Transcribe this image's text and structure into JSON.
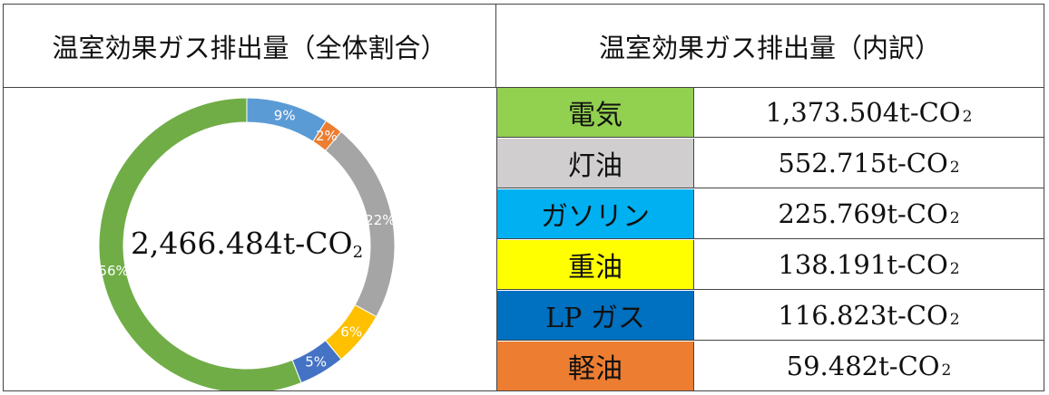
{
  "headers": {
    "left": "温室効果ガス排出量（全体割合）",
    "right": "温室効果ガス排出量（内訳）"
  },
  "center_label": {
    "main": "2,466.484t-CO",
    "sub": "2"
  },
  "rows": [
    {
      "fuel": "電気",
      "value": "1,373.504t-CO",
      "sub": "2",
      "color": "#92d050"
    },
    {
      "fuel": "灯油",
      "value": "552.715t-CO",
      "sub": "2",
      "color": "#d0cece"
    },
    {
      "fuel": "ガソリン",
      "value": "225.769t-CO",
      "sub": "2",
      "color": "#00b0f0"
    },
    {
      "fuel": "重油",
      "value": "138.191t-CO",
      "sub": "2",
      "color": "#ffff00"
    },
    {
      "fuel": "LP ガス",
      "value": "116.823t-CO",
      "sub": "2",
      "color": "#0070c0"
    },
    {
      "fuel": "軽油",
      "value": "59.482t-CO",
      "sub": "2",
      "color": "#ed7d31"
    }
  ],
  "chart_data": {
    "type": "pie",
    "variant": "donut",
    "slices": [
      {
        "label": "9%",
        "value": 9,
        "color": "#5b9bd5"
      },
      {
        "label": "2%",
        "value": 2,
        "color": "#ed7d31"
      },
      {
        "label": "22%",
        "value": 22,
        "color": "#a5a5a5"
      },
      {
        "label": "6%",
        "value": 6,
        "color": "#ffc000"
      },
      {
        "label": "5%",
        "value": 5,
        "color": "#4472c4"
      },
      {
        "label": "56%",
        "value": 56,
        "color": "#70ad47"
      }
    ]
  }
}
